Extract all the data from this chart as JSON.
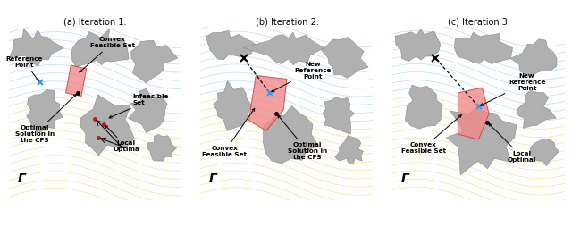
{
  "fig_width": 6.4,
  "fig_height": 2.54,
  "dpi": 100,
  "background_color": "#ffffff",
  "panel_titles": [
    "(a) Iteration 1.",
    "(b) Iteration 2.",
    "(c) Iteration 3."
  ],
  "obstacle_color": "#b0b0b0",
  "obstacle_edge": "#888888",
  "cfs_color": "#f08888",
  "cfs_alpha": 0.8,
  "cfs_edge": "#cc3333",
  "ref_point_color": "#3399ff",
  "local_optima_color": "#cc1111",
  "contour_yellow": "#e8d870",
  "contour_blue": "#9ec8e8",
  "gamma_label": "Γ",
  "annotation_fontsize": 5.2,
  "title_fontsize": 7.0,
  "panel_bg": "#f2f2ec"
}
